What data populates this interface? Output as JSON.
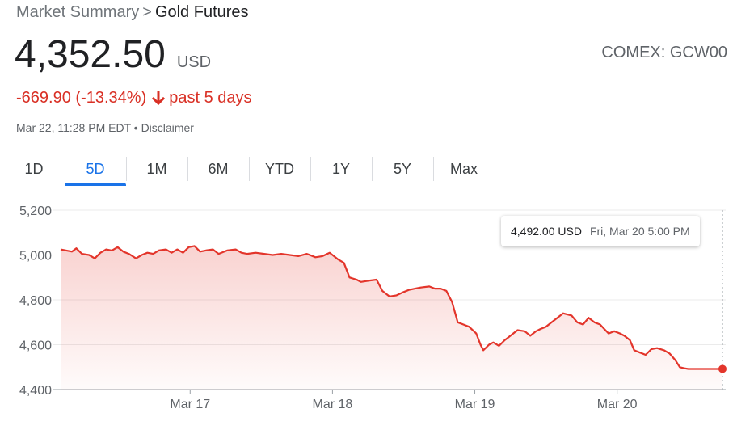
{
  "breadcrumb": {
    "root": "Market Summary",
    "separator": ">",
    "current": "Gold Futures"
  },
  "quote": {
    "price": "4,352.50",
    "currency": "USD",
    "ticker": "COMEX: GCW00",
    "change": "-669.90 (-13.34%)",
    "period": "past 5 days",
    "timestamp": "Mar 22, 11:28 PM EDT •",
    "disclaimer": "Disclaimer"
  },
  "tabs": [
    {
      "label": "1D",
      "active": false
    },
    {
      "label": "5D",
      "active": true
    },
    {
      "label": "1M",
      "active": false
    },
    {
      "label": "6M",
      "active": false
    },
    {
      "label": "YTD",
      "active": false
    },
    {
      "label": "1Y",
      "active": false
    },
    {
      "label": "5Y",
      "active": false
    },
    {
      "label": "Max",
      "active": false
    }
  ],
  "tooltip": {
    "value": "4,492.00 USD",
    "date": "Fri, Mar 20 5:00 PM"
  },
  "colors": {
    "line": "#e3352b",
    "accent": "#1a73e8",
    "negative": "#d93025"
  },
  "chart_data": {
    "type": "line",
    "ylim": [
      4400,
      5200
    ],
    "y_ticks": [
      4400,
      4600,
      4800,
      5000,
      5200
    ],
    "y_tick_labels": [
      "4,400",
      "4,600",
      "4,800",
      "5,000",
      "5,200"
    ],
    "x_tick_labels": [
      "Mar 17",
      "Mar 18",
      "Mar 19",
      "Mar 20"
    ],
    "x_tick_positions": [
      1,
      2,
      3,
      4
    ],
    "xlim": [
      0.09,
      4.74
    ],
    "grid": true,
    "fill": true,
    "series": [
      {
        "x": [
          0.09,
          0.13,
          0.17,
          0.2,
          0.24,
          0.29,
          0.33,
          0.37,
          0.41,
          0.45,
          0.49,
          0.53,
          0.57,
          0.62,
          0.66,
          0.7,
          0.74,
          0.78,
          0.83,
          0.87,
          0.91,
          0.95,
          0.99,
          1.03,
          1.07,
          1.11,
          1.16,
          1.2,
          1.26,
          1.32,
          1.36,
          1.4,
          1.46,
          1.52,
          1.58,
          1.64,
          1.7,
          1.76,
          1.82,
          1.88,
          1.93,
          1.98,
          2.04,
          2.08,
          2.12,
          2.17,
          2.2,
          2.25,
          2.31,
          2.35,
          2.4,
          2.45,
          2.5,
          2.54,
          2.58,
          2.62,
          2.68,
          2.72,
          2.76,
          2.8,
          2.84,
          2.88,
          2.92,
          2.96,
          3.01,
          3.04,
          3.06,
          3.1,
          3.13,
          3.17,
          3.21,
          3.23,
          3.27,
          3.3,
          3.35,
          3.39,
          3.43,
          3.46,
          3.5,
          3.54,
          3.58,
          3.62,
          3.68,
          3.72,
          3.76,
          3.8,
          3.84,
          3.88,
          3.91,
          3.94,
          3.98,
          4.02,
          4.05,
          4.09,
          4.12,
          4.16,
          4.2,
          4.24,
          4.28,
          4.33,
          4.37,
          4.41,
          4.44,
          4.47,
          4.5,
          4.54,
          4.58,
          4.62,
          4.66,
          4.69,
          4.72,
          4.74
        ],
        "values": [
          5025,
          5020,
          5015,
          5030,
          5005,
          5000,
          4985,
          5010,
          5025,
          5020,
          5035,
          5015,
          5005,
          4985,
          5000,
          5010,
          5005,
          5020,
          5025,
          5010,
          5025,
          5010,
          5035,
          5040,
          5015,
          5020,
          5025,
          5005,
          5020,
          5025,
          5010,
          5005,
          5010,
          5005,
          5000,
          5005,
          5000,
          4995,
          5005,
          4990,
          4995,
          5010,
          4980,
          4965,
          4900,
          4890,
          4880,
          4885,
          4890,
          4840,
          4815,
          4820,
          4835,
          4845,
          4850,
          4855,
          4860,
          4850,
          4850,
          4840,
          4790,
          4700,
          4690,
          4680,
          4650,
          4600,
          4575,
          4600,
          4610,
          4595,
          4620,
          4630,
          4650,
          4665,
          4660,
          4640,
          4660,
          4670,
          4680,
          4700,
          4720,
          4740,
          4730,
          4700,
          4690,
          4720,
          4700,
          4690,
          4670,
          4650,
          4660,
          4650,
          4640,
          4620,
          4575,
          4565,
          4555,
          4580,
          4585,
          4575,
          4560,
          4530,
          4500,
          4495,
          4492,
          4492,
          4492,
          4492,
          4492,
          4492,
          4492,
          4492
        ]
      }
    ]
  }
}
